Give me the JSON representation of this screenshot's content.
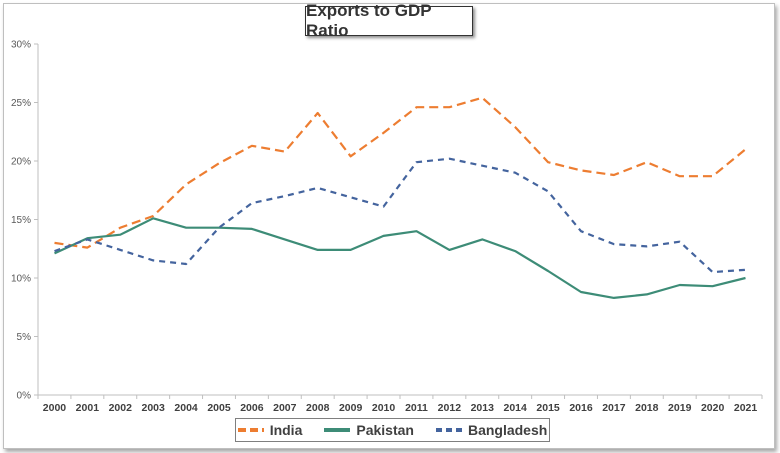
{
  "chart_data": {
    "type": "line",
    "title": "Exports to GDP Ratio",
    "categories": [
      "2000",
      "2001",
      "2002",
      "2003",
      "2004",
      "2005",
      "2006",
      "2007",
      "2008",
      "2009",
      "2010",
      "2011",
      "2012",
      "2013",
      "2014",
      "2015",
      "2016",
      "2017",
      "2018",
      "2019",
      "2020",
      "2021"
    ],
    "ylim": [
      0,
      30
    ],
    "yticks": [
      0,
      5,
      10,
      15,
      20,
      25,
      30
    ],
    "ytick_labels": [
      "0%",
      "5%",
      "10%",
      "15%",
      "20%",
      "25%",
      "30%"
    ],
    "grid": false,
    "legend_position": "bottom",
    "series": [
      {
        "name": "India",
        "color": "#ed7d31",
        "dash": "dashed",
        "values": [
          13.0,
          12.6,
          14.3,
          15.3,
          18.0,
          19.8,
          21.3,
          20.8,
          24.1,
          20.4,
          22.4,
          24.6,
          24.6,
          25.4,
          22.9,
          19.9,
          19.2,
          18.8,
          19.9,
          18.7,
          18.7,
          21.0
        ]
      },
      {
        "name": "Pakistan",
        "color": "#3d8c77",
        "dash": "solid",
        "values": [
          12.1,
          13.4,
          13.7,
          15.1,
          14.3,
          14.3,
          14.2,
          13.3,
          12.4,
          12.4,
          13.6,
          14.0,
          12.4,
          13.3,
          12.3,
          10.6,
          8.8,
          8.3,
          8.6,
          9.4,
          9.3,
          10.0
        ]
      },
      {
        "name": "Bangladesh",
        "color": "#44649e",
        "dash": "dashed",
        "values": [
          12.3,
          13.3,
          12.4,
          11.5,
          11.2,
          14.3,
          16.4,
          17.0,
          17.7,
          16.9,
          16.1,
          19.9,
          20.2,
          19.6,
          19.0,
          17.4,
          14.0,
          12.9,
          12.7,
          13.1,
          10.5,
          10.7
        ]
      }
    ]
  }
}
